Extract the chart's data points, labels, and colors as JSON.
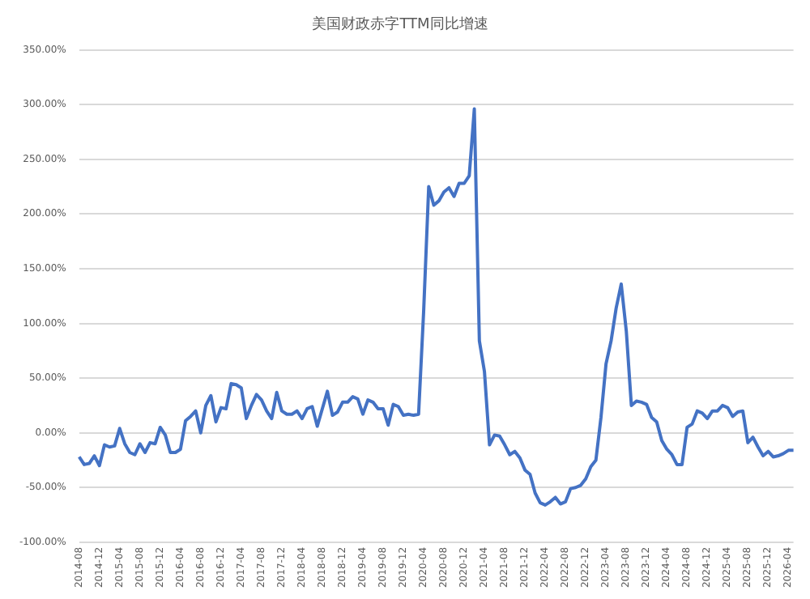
{
  "chart_data": {
    "type": "line",
    "title": "美国财政赤字TTM同比增速",
    "categories": [
      "2014-08",
      null,
      null,
      null,
      "2014-12",
      null,
      null,
      null,
      "2015-04",
      null,
      null,
      null,
      "2015-08",
      null,
      null,
      null,
      "2015-12",
      null,
      null,
      null,
      "2016-04",
      null,
      null,
      null,
      "2016-08",
      null,
      null,
      null,
      "2016-12",
      null,
      null,
      null,
      "2017-04",
      null,
      null,
      null,
      "2017-08",
      null,
      null,
      null,
      "2017-12",
      null,
      null,
      null,
      "2018-04",
      null,
      null,
      null,
      "2018-08",
      null,
      null,
      null,
      "2018-12",
      null,
      null,
      null,
      "2019-04",
      null,
      null,
      null,
      "2019-08",
      null,
      null,
      null,
      "2019-12",
      null,
      null,
      null,
      "2020-04",
      null,
      null,
      null,
      "2020-08",
      null,
      null,
      null,
      "2020-12",
      null,
      null,
      null,
      "2021-04",
      null,
      null,
      null,
      "2021-08",
      null,
      null,
      null,
      "2021-12",
      null,
      null,
      null,
      "2022-04",
      null,
      null,
      null,
      "2022-08",
      null,
      null,
      null,
      "2022-12",
      null,
      null,
      null,
      "2023-04",
      null,
      null,
      null,
      "2023-08",
      null,
      null,
      null,
      "2023-12",
      null,
      null,
      null,
      "2024-04",
      null,
      null,
      null,
      "2024-08",
      null,
      null,
      null,
      "2024-12",
      null,
      null,
      null,
      "2025-04",
      null,
      null,
      null,
      "2025-08",
      null,
      null,
      null,
      "2025-12",
      null,
      null,
      null,
      "2026-04",
      null
    ],
    "series": [
      {
        "color": "#4472c4",
        "values": [
          -22,
          -29,
          -28,
          -21,
          -30,
          -11,
          -13,
          -12,
          4,
          -10,
          -18,
          -20,
          -10,
          -18,
          -9,
          -10,
          5,
          -2,
          -18,
          -18,
          -15,
          11,
          15,
          20,
          0,
          25,
          34,
          10,
          23,
          22,
          45,
          44,
          41,
          13,
          25,
          35,
          30,
          20,
          13,
          37,
          20,
          17,
          17,
          20,
          13,
          22,
          24,
          6,
          22,
          38,
          16,
          19,
          28,
          28,
          33,
          31,
          17,
          30,
          28,
          22,
          22,
          7,
          26,
          24,
          16,
          17,
          16,
          17,
          111,
          225,
          208,
          212,
          220,
          224,
          216,
          228,
          228,
          235,
          296,
          84,
          56,
          -11,
          -2,
          -3,
          -11,
          -20,
          -17,
          -23,
          -34,
          -38,
          -55,
          -64,
          -66,
          -63,
          -59,
          -65,
          -63,
          -51,
          -50,
          -48,
          -42,
          -31,
          -25,
          14,
          63,
          84,
          114,
          136,
          93,
          25,
          29,
          28,
          26,
          14,
          10,
          -7,
          -15,
          -20,
          -29,
          -29,
          5,
          8,
          20,
          18,
          13,
          20,
          20,
          25,
          23,
          15,
          19,
          20,
          -9,
          -4,
          -13,
          -21,
          -17,
          -22,
          -21,
          -19,
          -16,
          -16
        ]
      }
    ],
    "ylim": [
      -100,
      350
    ],
    "yticks": [
      {
        "value": -100,
        "label": "-100.00%"
      },
      {
        "value": -50,
        "label": "-50.00%"
      },
      {
        "value": 0,
        "label": "0.00%"
      },
      {
        "value": 50,
        "label": "50.00%"
      },
      {
        "value": 100,
        "label": "100.00%"
      },
      {
        "value": 150,
        "label": "150.00%"
      },
      {
        "value": 200,
        "label": "200.00%"
      },
      {
        "value": 250,
        "label": "250.00%"
      },
      {
        "value": 300,
        "label": "300.00%"
      },
      {
        "value": 350,
        "label": "350.00%"
      }
    ],
    "grid": "y",
    "legend": false,
    "marker": "none",
    "line_style": "solid"
  }
}
